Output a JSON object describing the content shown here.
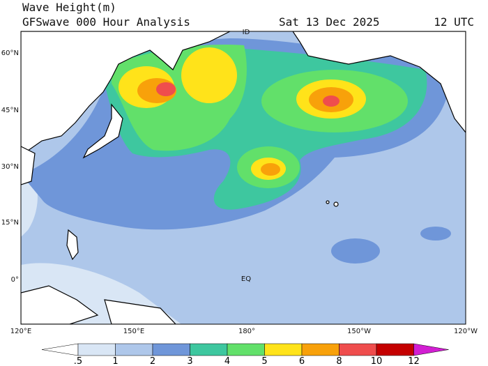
{
  "header": {
    "title": "Wave Height(m)",
    "subtitle": "GFSwave 000 Hour Analysis",
    "date": "Sat 13 Dec 2025",
    "time": "12 UTC"
  },
  "map": {
    "lat_labels": [
      "60°N",
      "45°N",
      "30°N",
      "15°N",
      "0°"
    ],
    "lon_labels": [
      "120°E",
      "150°E",
      "180°",
      "150°W",
      "120°W"
    ],
    "place_labels": [
      "ID",
      "EQ"
    ]
  },
  "colorbar": {
    "labels": [
      ".5",
      "1",
      "2",
      "3",
      "4",
      "5",
      "6",
      "8",
      "10",
      "12"
    ],
    "colors": [
      "#ffffff",
      "#d9e6f5",
      "#aec7ea",
      "#6f96d9",
      "#3ec79f",
      "#62e06a",
      "#ffe31a",
      "#f8a10a",
      "#ef4d4d",
      "#c40000",
      "#d21ed2"
    ]
  }
}
